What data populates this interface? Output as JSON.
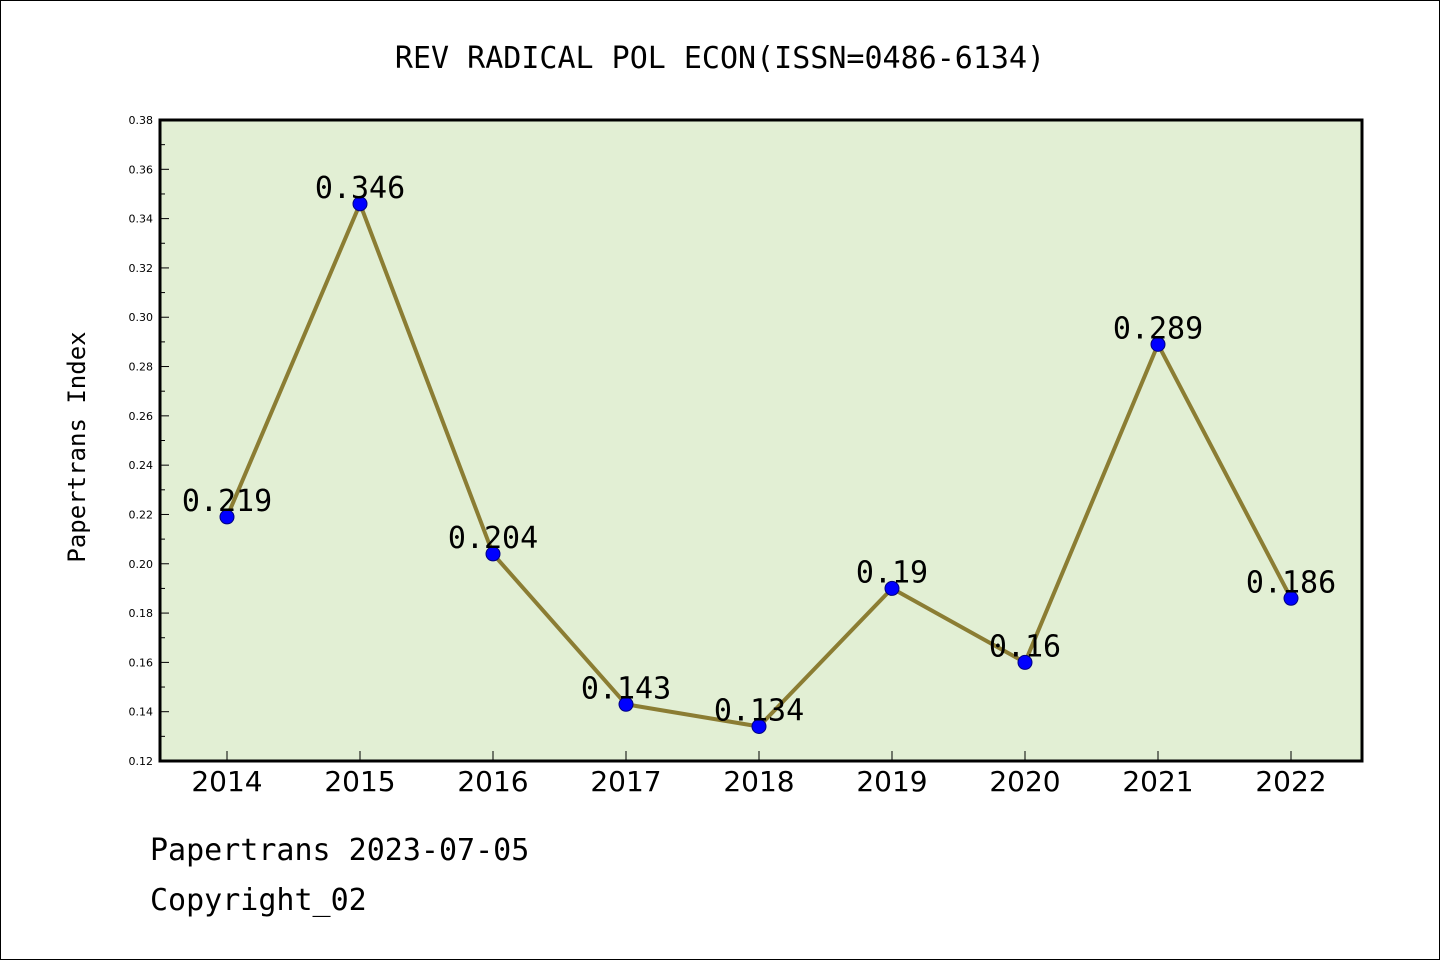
{
  "chart_data": {
    "type": "line",
    "title": "REV RADICAL POL ECON(ISSN=0486-6134)",
    "ylabel": "Papertrans Index",
    "xlabel": "",
    "categories": [
      "2014",
      "2015",
      "2016",
      "2017",
      "2018",
      "2019",
      "2020",
      "2021",
      "2022"
    ],
    "values": [
      0.219,
      0.346,
      0.204,
      0.143,
      0.134,
      0.19,
      0.16,
      0.289,
      0.186
    ],
    "data_labels": [
      "0.219",
      "0.346",
      "0.204",
      "0.143",
      "0.134",
      "0.19",
      "0.16",
      "0.289",
      "0.186"
    ],
    "ylim": [
      0.12,
      0.38
    ],
    "yticks": [
      "0.12",
      "0.14",
      "0.16",
      "0.18",
      "0.20",
      "0.22",
      "0.24",
      "0.26",
      "0.28",
      "0.30",
      "0.32",
      "0.34",
      "0.36",
      "0.38"
    ],
    "grid": false,
    "legend": "none",
    "colors": {
      "plot_background": "#e2efd4",
      "line": "#8b7d33",
      "marker": "#0000ff",
      "marker_edge": "#000080"
    }
  },
  "footer": {
    "line1": "Papertrans 2023-07-05",
    "line2": "Copyright_02"
  }
}
